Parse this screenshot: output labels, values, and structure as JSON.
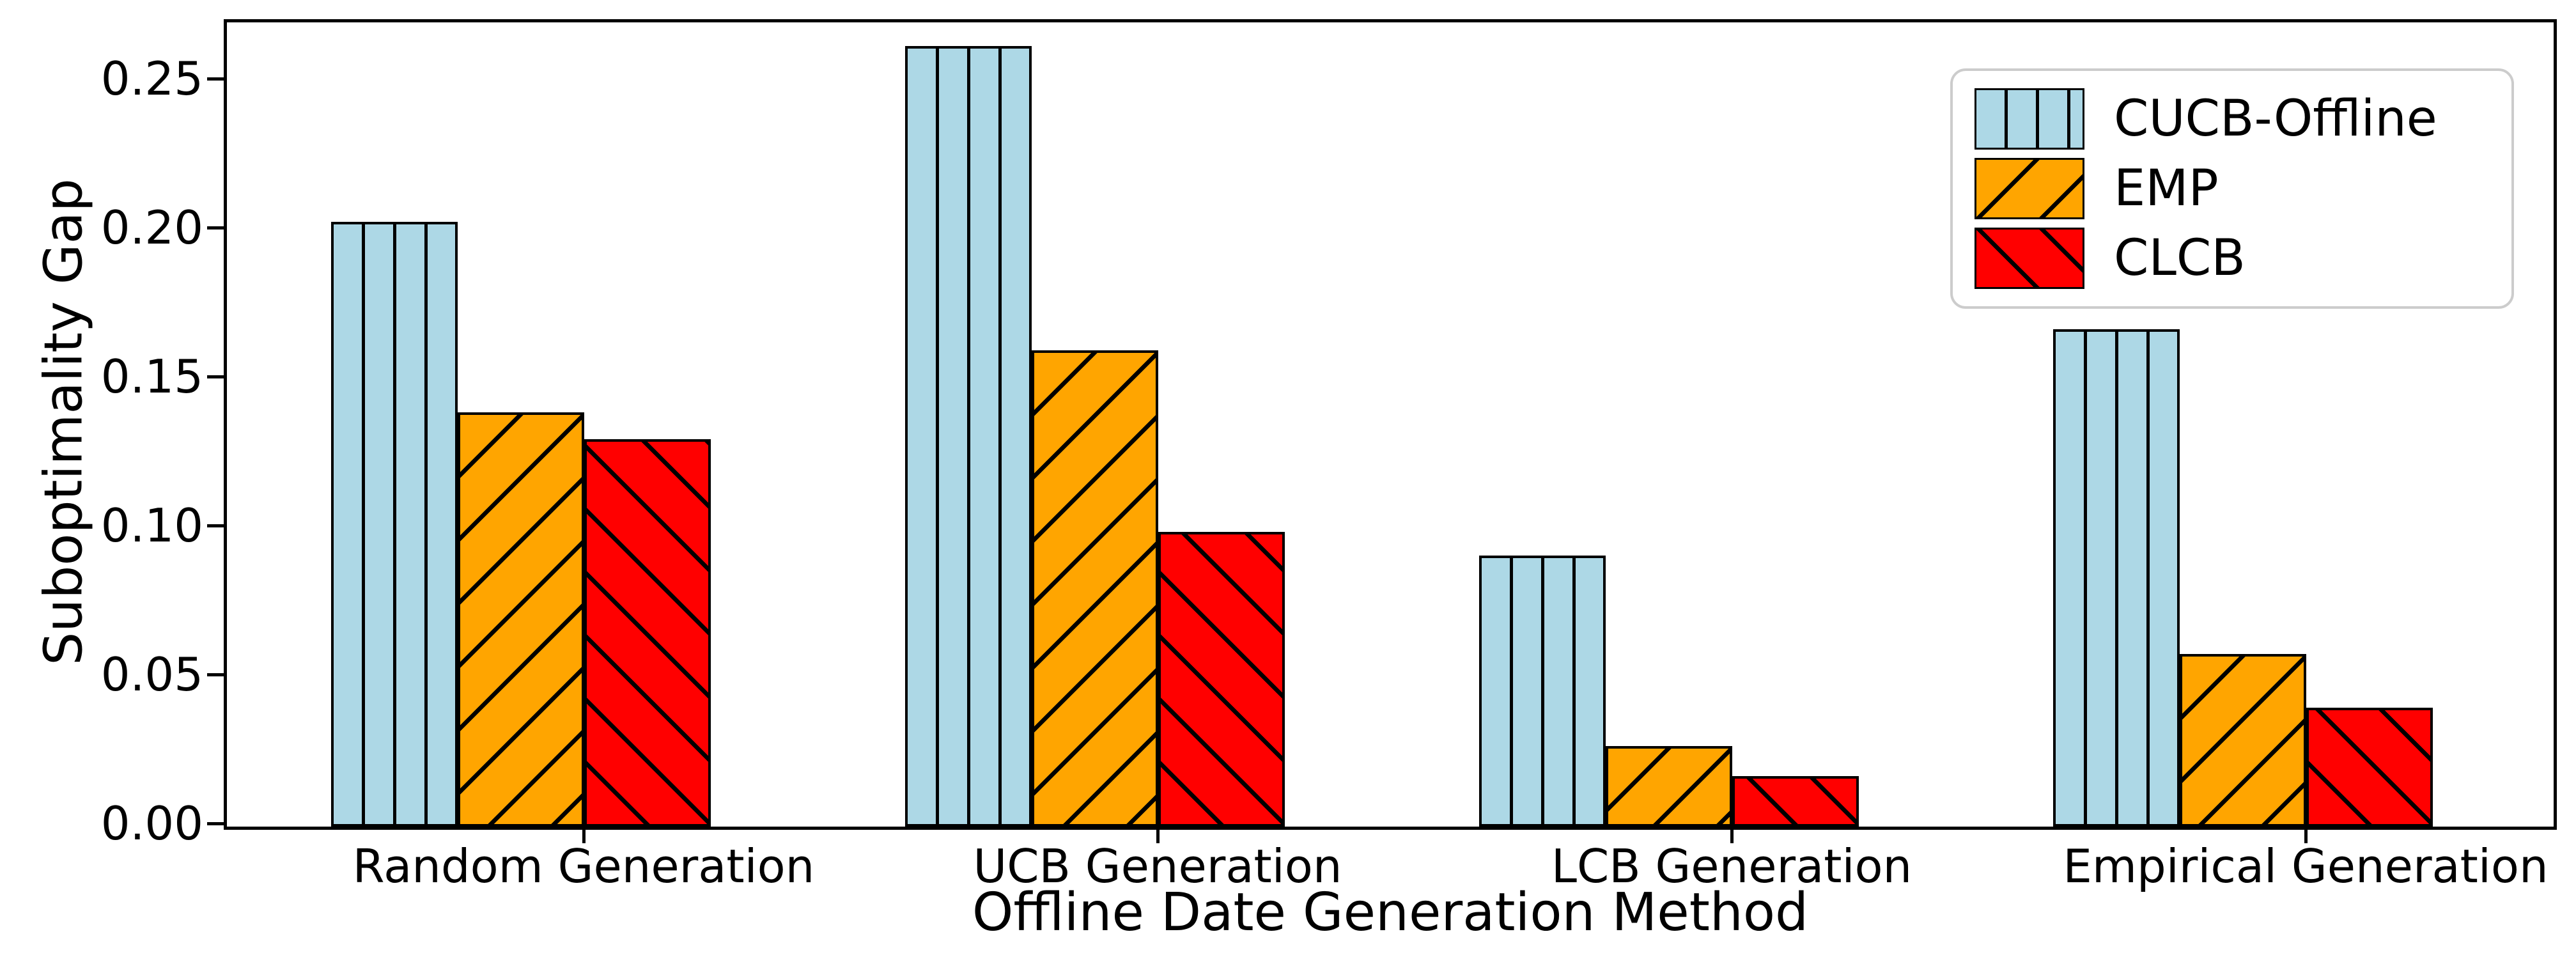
{
  "figure": {
    "background": "#FFFFFF"
  },
  "chart_data": {
    "type": "bar",
    "title": "",
    "xlabel": "Offline Date Generation Method",
    "ylabel": "Suboptimality Gap",
    "categories": [
      "Random Generation",
      "UCB Generation",
      "LCB Generation",
      "Empirical Generation"
    ],
    "series": [
      {
        "name": "CUCB-Offline",
        "color": "#ADD8E6",
        "edge_color": "#000000",
        "hatch": "vertical",
        "values": [
          0.203,
          0.262,
          0.091,
          0.167
        ]
      },
      {
        "name": "EMP",
        "color": "#FFA500",
        "edge_color": "#000000",
        "hatch": "forward-diagonal",
        "values": [
          0.139,
          0.16,
          0.027,
          0.058
        ]
      },
      {
        "name": "CLCB",
        "color": "#FF0000",
        "edge_color": "#000000",
        "hatch": "backward-diagonal",
        "values": [
          0.13,
          0.099,
          0.017,
          0.04
        ]
      }
    ],
    "ylim": [
      0,
      0.27
    ],
    "yticks": [
      "0.00",
      "0.05",
      "0.10",
      "0.15",
      "0.20",
      "0.25"
    ],
    "grid": false,
    "legend": {
      "position": "upper-right",
      "border_color": "#CCCCCC",
      "background": "#FFFFFF"
    }
  }
}
